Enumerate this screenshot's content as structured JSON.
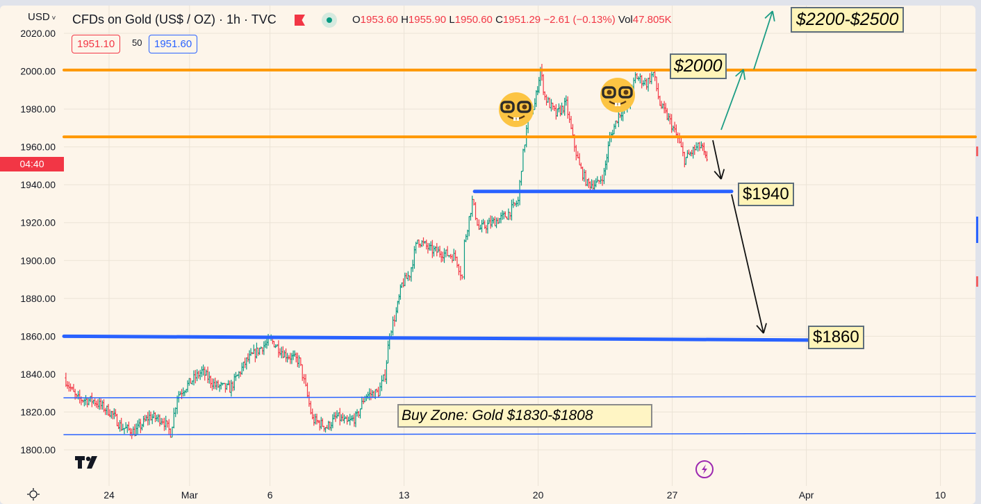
{
  "header": {
    "currency": "USD",
    "symbol_title": "CFDs on Gold (US$ / OZ) · 1h · TVC",
    "ohlc": {
      "o_label": "O",
      "o": "1953.60",
      "h_label": "H",
      "h": "1955.90",
      "l_label": "L",
      "l": "1950.60",
      "c_label": "C",
      "c": "1951.29",
      "change": "−2.61 (−0.13%)",
      "vol_label": "Vol",
      "vol": "47.805K"
    },
    "bid": "1951.10",
    "spread": "50",
    "ask": "1951.60",
    "countdown": "04:40"
  },
  "colors": {
    "background": "#fdf5ea",
    "up": "#089981",
    "down": "#f23645",
    "resistance": "#ff9800",
    "support": "#2962ff",
    "target_arrow": "#1a9c84",
    "note_bg": "#fff4b8"
  },
  "annotations": {
    "target_high": "$2200-$2500",
    "level_2000": "$2000",
    "level_1940": "$1940",
    "level_1860": "$1860",
    "buy_zone": "Buy Zone: Gold $1830-$1808"
  },
  "icons": [
    "nerd-face-emoji",
    "nerd-face-emoji",
    "tradingview-logo-icon",
    "lightning-icon",
    "sun-settings-icon",
    "chevron-down-icon",
    "flag-icon",
    "market-open-dot-icon"
  ],
  "chart_data": {
    "type": "ohlc",
    "title": "CFDs on Gold (US$ / OZ) · 1h · TVC",
    "ylim": [
      1800,
      2020
    ],
    "y_ticks": [
      "2020.00",
      "2000.00",
      "1980.00",
      "1960.00",
      "1940.00",
      "1920.00",
      "1900.00",
      "1880.00",
      "1860.00",
      "1840.00",
      "1820.00",
      "1800.00"
    ],
    "x_ticks": [
      "24",
      "Mar",
      "6",
      "13",
      "20",
      "27",
      "Apr",
      "10"
    ],
    "grid": true,
    "price_path": [
      [
        "Feb 22 08",
        1838
      ],
      [
        "Feb 22 19",
        1827
      ],
      [
        "Feb 23 10",
        1826
      ],
      [
        "Feb 24 02",
        1819.5
      ],
      [
        "Feb 24 11",
        1812
      ],
      [
        "Feb 24 23",
        1809.5
      ],
      [
        "Feb 27 12",
        1817.6
      ],
      [
        "Feb 28 00",
        1816
      ],
      [
        "Feb 28 07",
        1809
      ],
      [
        "Feb 28 13",
        1828.6
      ],
      [
        "Mar 1 01",
        1836
      ],
      [
        "Mar 1 11",
        1841.4
      ],
      [
        "Mar 1 23",
        1834
      ],
      [
        "Mar 2 12",
        1832.3
      ],
      [
        "Mar 3 03",
        1847
      ],
      [
        "Mar 3 16",
        1854
      ],
      [
        "Mar 6 01",
        1857.9
      ],
      [
        "Mar 6 13",
        1850.6
      ],
      [
        "Mar 7 02",
        1847
      ],
      [
        "Mar 7 08",
        1832.3
      ],
      [
        "Mar 7 14",
        1816
      ],
      [
        "Mar 8 03",
        1812
      ],
      [
        "Mar 8 12",
        1817.6
      ],
      [
        "Mar 8 21",
        1814
      ],
      [
        "Mar 9 06",
        1817.6
      ],
      [
        "Mar 9 13",
        1828.6
      ],
      [
        "Mar 10 01",
        1830.4
      ],
      [
        "Mar 10 07",
        1839.6
      ],
      [
        "Mar 10 11",
        1861.6
      ],
      [
        "Mar 10 17",
        1872.6
      ],
      [
        "Mar 10 22",
        1887.3
      ],
      [
        "Mar 13 05",
        1892.8
      ],
      [
        "Mar 13 12",
        1911
      ],
      [
        "Mar 14 00",
        1905.6
      ],
      [
        "Mar 14 12",
        1903.7
      ],
      [
        "Mar 14 22",
        1902
      ],
      [
        "Mar 15 04",
        1891
      ],
      [
        "Mar 15 06",
        1909.3
      ],
      [
        "Mar 15 13",
        1931.3
      ],
      [
        "Mar 15 19",
        1916.6
      ],
      [
        "Mar 16 08",
        1920.3
      ],
      [
        "Mar 16 20",
        1924
      ],
      [
        "Mar 17 06",
        1931.3
      ],
      [
        "Mar 17 09",
        1949.6
      ],
      [
        "Mar 17 15",
        1975.3
      ],
      [
        "Mar 17 21",
        1982.6
      ],
      [
        "Mar 20 02",
        2000.9
      ],
      [
        "Mar 20 06",
        1986.3
      ],
      [
        "Mar 20 16",
        1977.1
      ],
      [
        "Mar 21 01",
        1982.6
      ],
      [
        "Mar 21 07",
        1964.3
      ],
      [
        "Mar 21 13",
        1949.6
      ],
      [
        "Mar 21 20",
        1940.4
      ],
      [
        "Mar 22 05",
        1940.4
      ],
      [
        "Mar 22 11",
        1946
      ],
      [
        "Mar 22 16",
        1964.3
      ],
      [
        "Mar 23 00",
        1977.1
      ],
      [
        "Mar 23 09",
        1982.6
      ],
      [
        "Mar 23 15",
        1997.3
      ],
      [
        "Mar 24 01",
        1993.6
      ],
      [
        "Mar 24 07",
        1999
      ],
      [
        "Mar 24 13",
        1982.6
      ],
      [
        "Mar 24 22",
        1973.4
      ],
      [
        "Mar 27 05",
        1964.3
      ],
      [
        "Mar 27 11",
        1953.3
      ],
      [
        "Mar 27 20",
        1958.8
      ],
      [
        "Mar 28 02",
        1960.6
      ],
      [
        "Mar 28 07",
        1951.4
      ]
    ],
    "horizontal_levels": [
      {
        "price": 2000.6,
        "color": "#ff9800"
      },
      {
        "price": 1965.3,
        "color": "#ff9800"
      },
      {
        "price": 1936.5,
        "color": "#2962ff",
        "from": "Mar 15 12"
      },
      {
        "price": 1860,
        "color": "#2962ff"
      },
      {
        "price": 1827.5,
        "color": "#2962ff"
      },
      {
        "price": 1808,
        "color": "#2962ff"
      }
    ]
  }
}
